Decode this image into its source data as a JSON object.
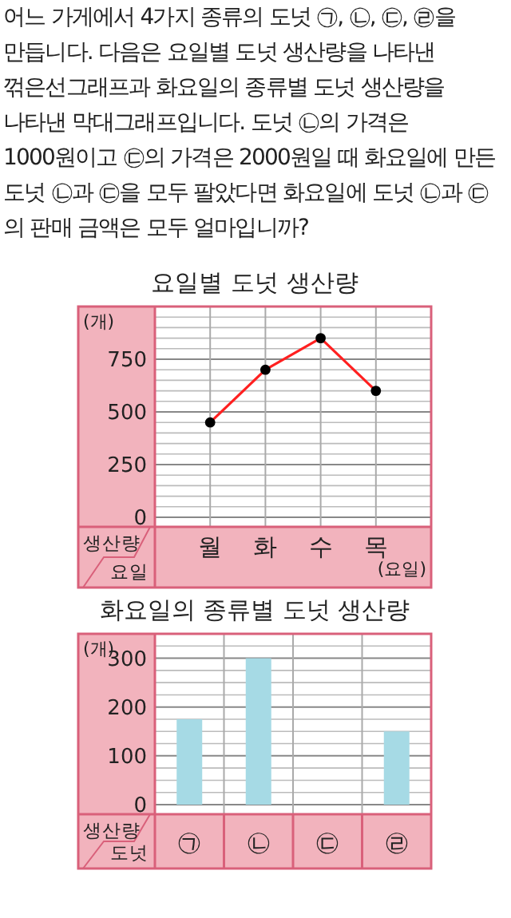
{
  "chart_data": [
    {
      "type": "line",
      "title": "요일별 도넛 생산량",
      "ylabel": "(개)",
      "xlabel": "(요일)",
      "categories": [
        "월",
        "화",
        "수",
        "목"
      ],
      "series": [
        {
          "color": "#ff2020",
          "values": [
            450,
            700,
            850,
            600
          ]
        }
      ],
      "ylim": [
        0,
        1000
      ],
      "yticks": [
        0,
        {
          "value": 50,
          "label": null
        },
        {
          "value": 100,
          "label": null
        },
        {
          "value": 150,
          "label": null
        },
        {
          "value": 200,
          "label": null
        },
        250,
        {
          "value": 300,
          "label": null
        },
        {
          "value": 350,
          "label": null
        },
        {
          "value": 400,
          "label": null
        },
        {
          "value": 450,
          "label": null
        },
        500,
        {
          "value": 550,
          "label": null
        },
        {
          "value": 600,
          "label": null
        },
        {
          "value": 650,
          "label": null
        },
        {
          "value": 700,
          "label": null
        },
        750,
        {
          "value": 800,
          "label": null
        },
        {
          "value": 850,
          "label": null
        },
        {
          "value": 900,
          "label": null
        },
        {
          "value": 950,
          "label": null
        },
        {
          "value": 1000,
          "label": null
        }
      ],
      "grid": true,
      "marker": "circle",
      "line_style": "solid",
      "annotations": [
        "어느 가게에서 4가지 종류의 도넛 ㉠, ㉡, ㉢, ㉣을 만듭니다. 다음은 요일별 도넛 생산량을 나타낸 꺾은선그래프과 화요일의 종류별 도넛 생산량을 나타낸 막대그래프입니다. 도넛 ㉡의 가격은 1000원이고 ㉢의 가격은 2000원일 때 화요일에 만든 도넛 ㉡과 ㉢을 모두 팔았다면 화요일에 도넛 ㉡과 ㉢의 판매 금액은 모두 얼마입니까?",
        "생산량",
        "요일"
      ]
    },
    {
      "type": "bar",
      "title": "화요일의 종류별 도넛 생산량",
      "ylabel": "(개)",
      "categories": [
        "㉠",
        "㉡",
        "㉢",
        "㉣"
      ],
      "series": [
        {
          "color": "#a6dae5",
          "values": [
            175,
            300,
            null,
            150
          ]
        }
      ],
      "ylim": [
        0,
        350
      ],
      "yticks": [
        0,
        {
          "value": 25,
          "label": null
        },
        {
          "value": 50,
          "label": null
        },
        {
          "value": 75,
          "label": null
        },
        100,
        {
          "value": 125,
          "label": null
        },
        {
          "value": 150,
          "label": null
        },
        {
          "value": 175,
          "label": null
        },
        200,
        {
          "value": 225,
          "label": null
        },
        {
          "value": 250,
          "label": null
        },
        {
          "value": 275,
          "label": null
        },
        300,
        {
          "value": 325,
          "label": null
        },
        {
          "value": 350,
          "label": null
        }
      ],
      "grid": true,
      "annotations": [
        "생산량",
        "도넛"
      ]
    }
  ]
}
